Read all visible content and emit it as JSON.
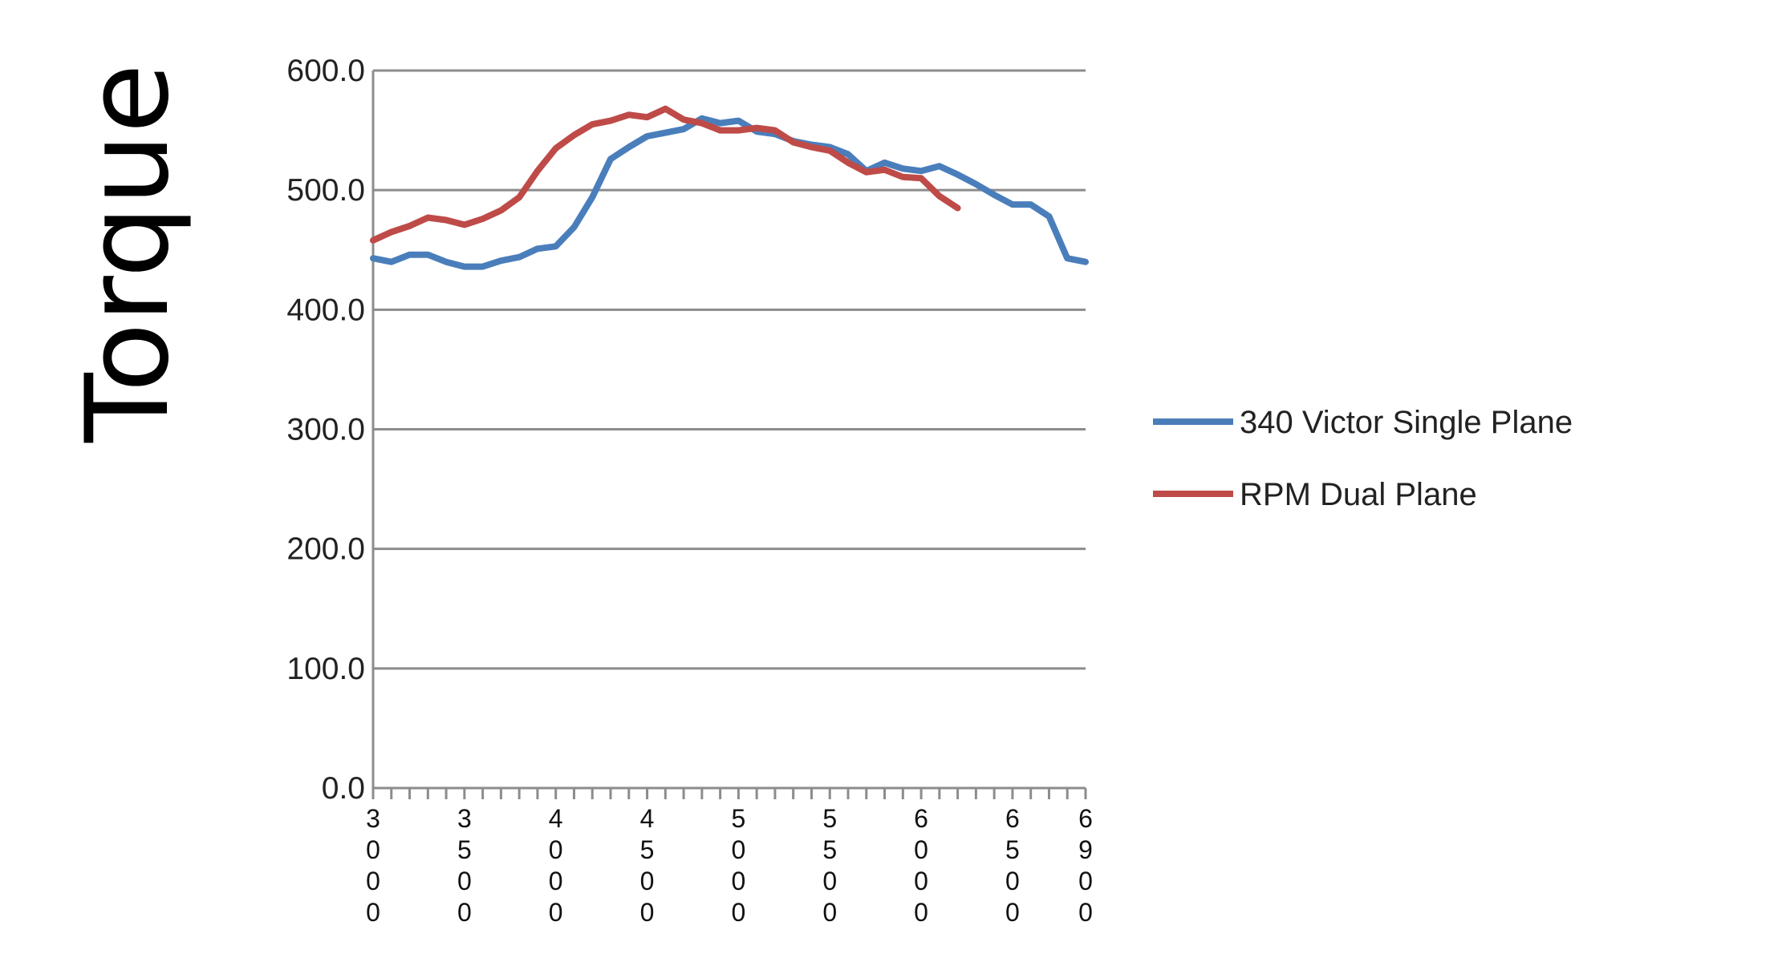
{
  "chart_data": {
    "type": "line",
    "ylabel": "Torque",
    "xlabel": "",
    "ylim": [
      0,
      600
    ],
    "y_ticks": [
      "0.0",
      "100.0",
      "200.0",
      "300.0",
      "400.0",
      "500.0",
      "600.0"
    ],
    "x": [
      3000,
      3100,
      3200,
      3300,
      3400,
      3500,
      3600,
      3700,
      3800,
      3900,
      4000,
      4100,
      4200,
      4300,
      4400,
      4500,
      4600,
      4700,
      4800,
      4900,
      5000,
      5100,
      5200,
      5300,
      5400,
      5500,
      5600,
      5700,
      5800,
      5900,
      6000,
      6100,
      6200,
      6300,
      6400,
      6500,
      6600,
      6700,
      6800,
      6900
    ],
    "x_tick_labels": [
      {
        "x": 3000,
        "text": "3000"
      },
      {
        "x": 3500,
        "text": "3500"
      },
      {
        "x": 4000,
        "text": "4000"
      },
      {
        "x": 4500,
        "text": "4500"
      },
      {
        "x": 5000,
        "text": "5000"
      },
      {
        "x": 5500,
        "text": "5500"
      },
      {
        "x": 6000,
        "text": "6000"
      },
      {
        "x": 6500,
        "text": "6500"
      },
      {
        "x": 6900,
        "text": "6900"
      }
    ],
    "grid": true,
    "legend_position": "right",
    "series": [
      {
        "name": "340 Victor Single Plane",
        "color": "#4a7ebb",
        "values": [
          443,
          440,
          446,
          446,
          440,
          436,
          436,
          441,
          444,
          451,
          453,
          469,
          494,
          526,
          536,
          545,
          548,
          551,
          560,
          556,
          558,
          549,
          547,
          541,
          538,
          536,
          530,
          516,
          523,
          518,
          516,
          520,
          513,
          505,
          496,
          488,
          488,
          478,
          443,
          440
        ]
      },
      {
        "name": "RPM Dual Plane",
        "color": "#be4b48",
        "values": [
          458,
          465,
          470,
          477,
          475,
          471,
          476,
          483,
          494,
          516,
          535,
          546,
          555,
          558,
          563,
          561,
          568,
          559,
          556,
          550,
          550,
          552,
          550,
          540,
          536,
          533,
          523,
          515,
          517,
          511,
          510,
          495,
          485,
          null,
          null,
          null,
          null,
          null,
          null,
          null
        ]
      }
    ]
  }
}
